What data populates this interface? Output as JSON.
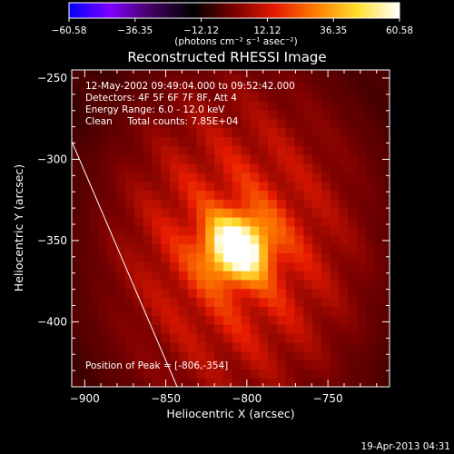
{
  "chart_data": {
    "type": "heatmap",
    "title": "Reconstructed RHESSI Image",
    "xlabel": "Heliocentric X (arcsec)",
    "ylabel": "Heliocentric Y (arcsec)",
    "xlim": [
      -908,
      -712
    ],
    "ylim": [
      -440,
      -245
    ],
    "x_ticks": [
      -900,
      -850,
      -800,
      -750
    ],
    "y_ticks": [
      -250,
      -300,
      -350,
      -400
    ],
    "colorbar": {
      "range": [
        -60.58,
        60.58
      ],
      "ticks": [
        "-60.58",
        "-36.35",
        "-12.12",
        "12.12",
        "36.35",
        "60.58"
      ],
      "unit_label": "(photons cm⁻² s⁻¹ asec⁻²)",
      "colors": [
        "#0000ff",
        "#8000ff",
        "#400060",
        "#000000",
        "#7a0000",
        "#e61a00",
        "#ff8000",
        "#ffe030",
        "#ffffff"
      ]
    },
    "info_lines": [
      "12-May-2002 09:49:04.000 to 09:52:42.000",
      "Detectors: 4F 5F 6F 7F 8F, Att 4",
      "Energy Range: 6.0 - 12.0 keV",
      "Clean     Total counts: 7.85E+04"
    ],
    "peak_label": "Position of Peak = [-806,-354]",
    "peak": [
      -806,
      -354
    ],
    "peak_value": 60.58,
    "limb_line": [
      [
        -908,
        -289
      ],
      [
        -843,
        -440
      ]
    ]
  },
  "footer": {
    "date": "19-Apr-2013 04:31"
  }
}
